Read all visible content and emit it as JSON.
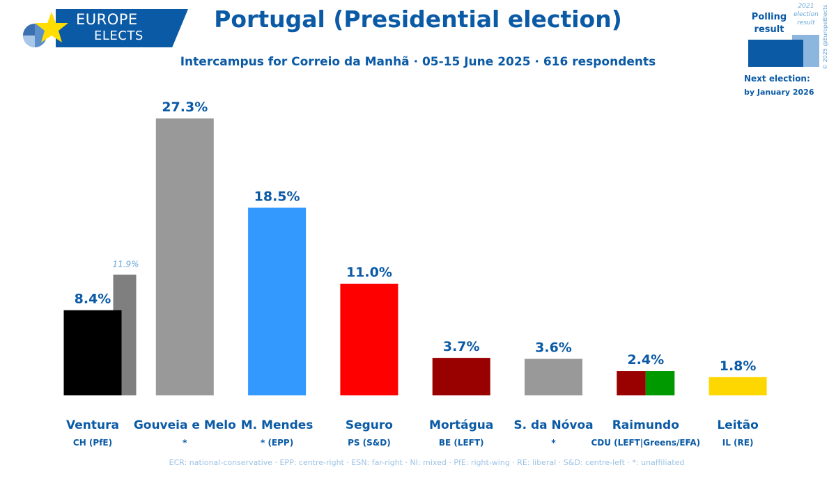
{
  "logo": {
    "line1": "EUROPE",
    "line2": "ELECTS"
  },
  "header": {
    "title": "Portugal (Presidential election)",
    "subtitle": "Intercampus for Correio da Manhã · 05-15 June 2025 · 616 respondents"
  },
  "legend": {
    "poll_label": "Polling result",
    "prev_label": "2021 election result",
    "next_label": "Next election:",
    "next_date": "by January 2026",
    "copyright": "© 2025 @EuropeElects"
  },
  "footer": "ECR: national-conservative · EPP: centre-right · ESN: far-right · NI: mixed · PfE: right-wing · RE: liberal · S&D: centre-left · *: unaffiliated",
  "chart_data": {
    "type": "bar",
    "ylim": [
      0,
      28
    ],
    "categories": [
      "Ventura",
      "Gouveia e Melo",
      "M. Mendes",
      "Seguro",
      "Mortágua",
      "S. da Nóvoa",
      "Raimundo",
      "Leitão"
    ],
    "parties": [
      "CH (PfE)",
      "*",
      "* (EPP)",
      "PS (S&D)",
      "BE (LEFT)",
      "*",
      "CDU (LEFT|Greens/EFA)",
      "IL (RE)"
    ],
    "values": [
      8.4,
      27.3,
      18.5,
      11.0,
      3.7,
      3.6,
      2.4,
      1.8
    ],
    "value_labels": [
      "8.4%",
      "27.3%",
      "18.5%",
      "11.0%",
      "3.7%",
      "3.6%",
      "2.4%",
      "1.8%"
    ],
    "colors": [
      [
        "#000000"
      ],
      [
        "#999999"
      ],
      [
        "#3399ff"
      ],
      [
        "#ff0000"
      ],
      [
        "#990000"
      ],
      [
        "#999999"
      ],
      [
        "#990000",
        "#009900"
      ],
      [
        "#ffd700"
      ]
    ],
    "previous_result": [
      {
        "category": "Ventura",
        "value": 11.9,
        "label": "11.9%",
        "color": "#7f7f7f"
      }
    ]
  }
}
